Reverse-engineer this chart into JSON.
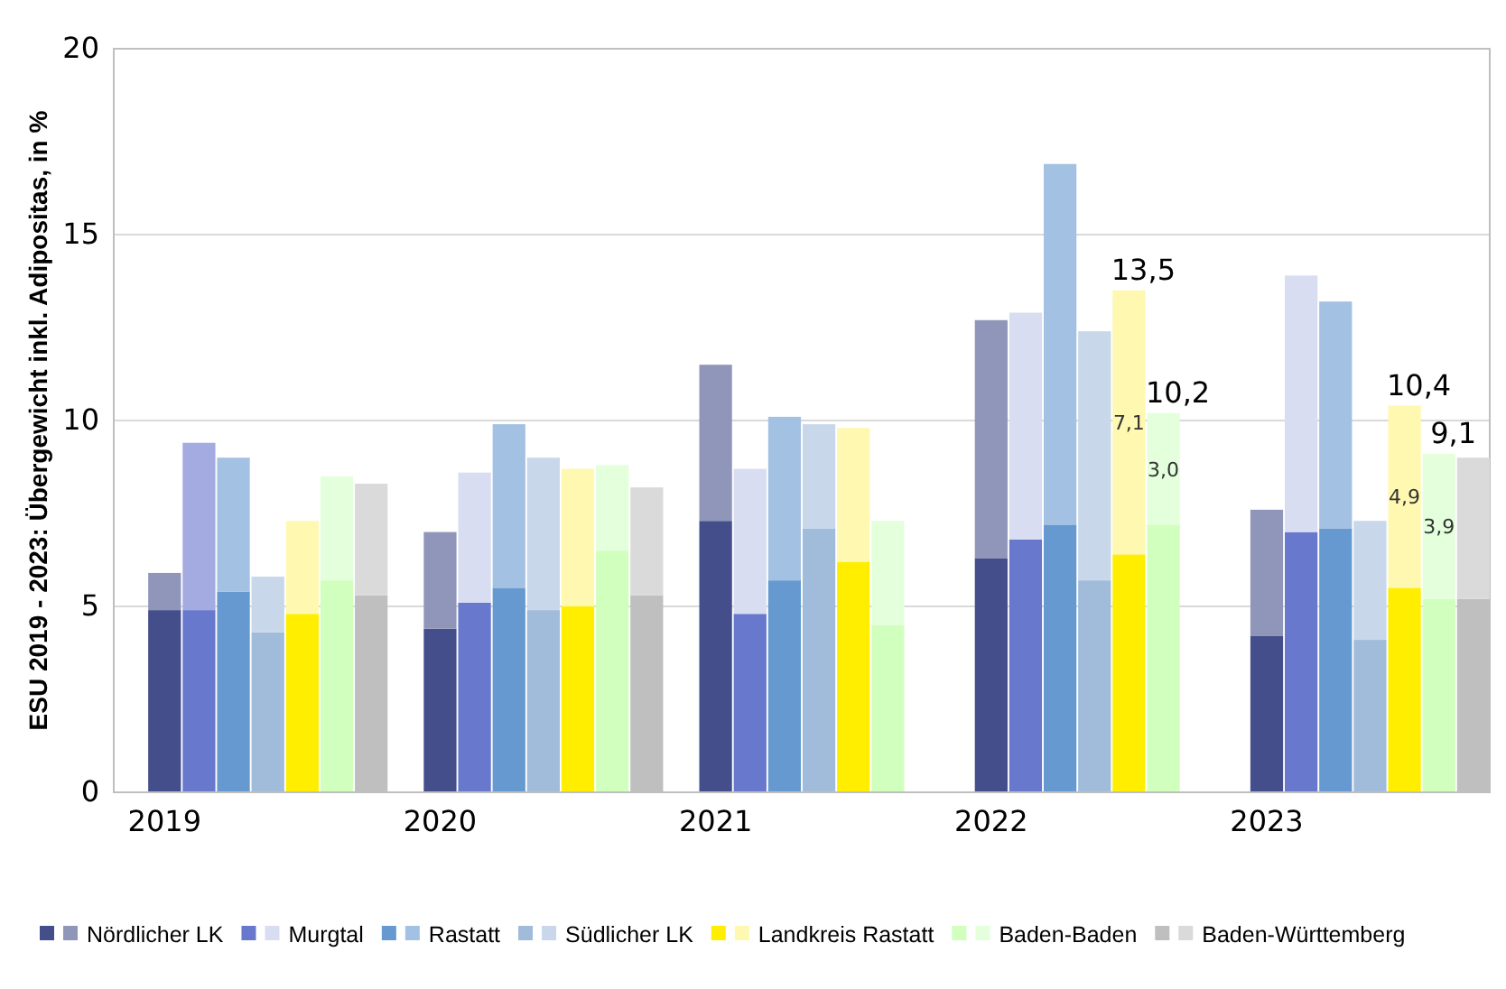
{
  "chart_data": {
    "type": "bar",
    "stacked": true,
    "ylabel": "ESU 2019 - 2023: Übergewicht inkl. Adipositas, in %",
    "ylim": [
      0,
      20
    ],
    "yticks": [
      0,
      5,
      10,
      15,
      20
    ],
    "grid": "y",
    "legend": "bottom",
    "categories": [
      null,
      "2019",
      null,
      null,
      null,
      null,
      null,
      null,
      null,
      "2020",
      null,
      null,
      null,
      null,
      null,
      null,
      null,
      "2021",
      null,
      null,
      null,
      null,
      null,
      null,
      null,
      "2022",
      null,
      null,
      null,
      null,
      null,
      null,
      null,
      "2023",
      null,
      null,
      null,
      null,
      null,
      null
    ],
    "totals": [
      null,
      null,
      null,
      null,
      null,
      null,
      null,
      null,
      null,
      null,
      null,
      null,
      null,
      null,
      null,
      null,
      null,
      null,
      null,
      null,
      null,
      null,
      null,
      null,
      null,
      null,
      null,
      null,
      null,
      "13,5",
      "10,2",
      null,
      null,
      null,
      null,
      null,
      null,
      "10,4",
      "9,1",
      null
    ],
    "series": [
      {
        "color": "#434e8a",
        "values": [
          null,
          4.9,
          null,
          null,
          null,
          null,
          null,
          null,
          null,
          4.4,
          null,
          null,
          null,
          null,
          null,
          null,
          null,
          7.3,
          null,
          null,
          null,
          null,
          null,
          null,
          null,
          6.3,
          null,
          null,
          null,
          null,
          null,
          null,
          null,
          4.2,
          null,
          null,
          null,
          null,
          null,
          null
        ]
      },
      {
        "name": "Nördlicher LK",
        "color": "#8f96b9",
        "values": [
          null,
          1.0,
          null,
          null,
          null,
          null,
          null,
          null,
          null,
          2.6,
          null,
          null,
          null,
          null,
          null,
          null,
          null,
          4.2,
          null,
          null,
          null,
          null,
          null,
          null,
          null,
          6.4,
          null,
          null,
          null,
          null,
          null,
          null,
          null,
          3.4,
          null,
          null,
          null,
          null,
          null,
          null
        ]
      },
      {
        "color": "#6878cc",
        "values": [
          null,
          null,
          4.9,
          null,
          null,
          null,
          null,
          null,
          null,
          null,
          5.1,
          null,
          null,
          null,
          null,
          null,
          null,
          null,
          4.8,
          null,
          null,
          null,
          null,
          null,
          null,
          null,
          6.8,
          null,
          null,
          null,
          null,
          null,
          null,
          null,
          7.0,
          null,
          null,
          null,
          null,
          null
        ]
      },
      {
        "name": "Murgtal",
        "color": "#d9ddf2",
        "colors": [
          null,
          null,
          "#a3abe0",
          null,
          null,
          null,
          null,
          null,
          null,
          null,
          "#d9ddf2",
          null,
          null,
          null,
          null,
          null,
          null,
          null,
          "#d9ddf2",
          null,
          null,
          null,
          null,
          null,
          null,
          null,
          "#d9ddf2",
          null,
          null,
          null,
          null,
          null,
          null,
          null,
          "#d9ddf2",
          null,
          null,
          null,
          null,
          null
        ],
        "values": [
          null,
          null,
          4.5,
          null,
          null,
          null,
          null,
          null,
          null,
          null,
          3.5,
          null,
          null,
          null,
          null,
          null,
          null,
          null,
          3.9,
          null,
          null,
          null,
          null,
          null,
          null,
          null,
          6.1,
          null,
          null,
          null,
          null,
          null,
          null,
          null,
          6.9,
          null,
          null,
          null,
          null,
          null
        ]
      },
      {
        "color": "#6699cf",
        "values": [
          null,
          null,
          null,
          5.4,
          null,
          null,
          null,
          null,
          null,
          null,
          null,
          5.5,
          null,
          null,
          null,
          null,
          null,
          null,
          null,
          5.7,
          null,
          null,
          null,
          null,
          null,
          null,
          null,
          7.2,
          null,
          null,
          null,
          null,
          null,
          null,
          null,
          7.1,
          null,
          null,
          null,
          null
        ]
      },
      {
        "name": "Rastatt",
        "color": "#a3c1e2",
        "values": [
          null,
          null,
          null,
          3.6,
          null,
          null,
          null,
          null,
          null,
          null,
          null,
          4.4,
          null,
          null,
          null,
          null,
          null,
          null,
          null,
          4.4,
          null,
          null,
          null,
          null,
          null,
          null,
          null,
          9.7,
          null,
          null,
          null,
          null,
          null,
          null,
          null,
          6.1,
          null,
          null,
          null,
          null
        ]
      },
      {
        "color": "#a0bcda",
        "values": [
          null,
          null,
          null,
          null,
          4.3,
          null,
          null,
          null,
          null,
          null,
          null,
          null,
          4.9,
          null,
          null,
          null,
          null,
          null,
          null,
          null,
          7.1,
          null,
          null,
          null,
          null,
          null,
          null,
          null,
          5.7,
          null,
          null,
          null,
          null,
          null,
          null,
          null,
          4.1,
          null,
          null,
          null
        ]
      },
      {
        "name": "Südlicher LK",
        "color": "#c8d8ea",
        "values": [
          null,
          null,
          null,
          null,
          1.5,
          null,
          null,
          null,
          null,
          null,
          null,
          null,
          4.1,
          null,
          null,
          null,
          null,
          null,
          null,
          null,
          2.8,
          null,
          null,
          null,
          null,
          null,
          null,
          null,
          6.7,
          null,
          null,
          null,
          null,
          null,
          null,
          null,
          3.2,
          null,
          null,
          null
        ]
      },
      {
        "color": "#ffee00",
        "values": [
          null,
          null,
          null,
          null,
          null,
          4.8,
          null,
          null,
          null,
          null,
          null,
          null,
          null,
          5.0,
          null,
          null,
          null,
          null,
          null,
          null,
          null,
          6.2,
          null,
          null,
          null,
          null,
          null,
          null,
          null,
          6.4,
          null,
          null,
          null,
          null,
          null,
          null,
          null,
          5.5,
          null,
          null
        ]
      },
      {
        "name": "Landkreis Rastatt",
        "color": "#fff8b0",
        "values": [
          null,
          null,
          null,
          null,
          null,
          2.5,
          null,
          null,
          null,
          null,
          null,
          null,
          null,
          3.7,
          null,
          null,
          null,
          null,
          null,
          null,
          null,
          3.6,
          null,
          null,
          null,
          null,
          null,
          null,
          null,
          7.1,
          null,
          null,
          null,
          null,
          null,
          null,
          null,
          4.9,
          null,
          null
        ],
        "value_labels": [
          null,
          null,
          null,
          null,
          null,
          null,
          null,
          null,
          null,
          null,
          null,
          null,
          null,
          null,
          null,
          null,
          null,
          null,
          null,
          null,
          null,
          null,
          null,
          null,
          null,
          null,
          null,
          null,
          null,
          "7,1",
          null,
          null,
          null,
          null,
          null,
          null,
          null,
          "4,9",
          null,
          null
        ]
      },
      {
        "color": "#d0ffbe",
        "values": [
          null,
          null,
          null,
          null,
          null,
          null,
          5.7,
          null,
          null,
          null,
          null,
          null,
          null,
          null,
          6.5,
          null,
          null,
          null,
          null,
          null,
          null,
          null,
          4.5,
          null,
          null,
          null,
          null,
          null,
          null,
          null,
          7.2,
          null,
          null,
          null,
          null,
          null,
          null,
          null,
          5.2,
          null
        ]
      },
      {
        "name": "Baden-Baden",
        "color": "#e3ffdc",
        "values": [
          null,
          null,
          null,
          null,
          null,
          null,
          2.8,
          null,
          null,
          null,
          null,
          null,
          null,
          null,
          2.3,
          null,
          null,
          null,
          null,
          null,
          null,
          null,
          2.8,
          null,
          null,
          null,
          null,
          null,
          null,
          null,
          3.0,
          null,
          null,
          null,
          null,
          null,
          null,
          null,
          3.9,
          null
        ],
        "value_labels": [
          null,
          null,
          null,
          null,
          null,
          null,
          null,
          null,
          null,
          null,
          null,
          null,
          null,
          null,
          null,
          null,
          null,
          null,
          null,
          null,
          null,
          null,
          null,
          null,
          null,
          null,
          null,
          null,
          null,
          null,
          "3,0",
          null,
          null,
          null,
          null,
          null,
          null,
          null,
          "3,9",
          null
        ]
      },
      {
        "color": "#bfbfbf",
        "values": [
          null,
          null,
          null,
          null,
          null,
          null,
          null,
          5.3,
          null,
          null,
          null,
          null,
          null,
          null,
          null,
          5.3,
          null,
          null,
          null,
          null,
          null,
          null,
          null,
          null,
          null,
          null,
          null,
          null,
          null,
          null,
          null,
          null,
          null,
          null,
          null,
          null,
          null,
          null,
          null,
          5.2
        ]
      },
      {
        "name": "Baden-Württemberg",
        "color": "#dadada",
        "values": [
          null,
          null,
          null,
          null,
          null,
          null,
          null,
          3.0,
          null,
          null,
          null,
          null,
          null,
          null,
          null,
          2.9,
          null,
          null,
          null,
          null,
          null,
          null,
          null,
          null,
          null,
          null,
          null,
          null,
          null,
          null,
          null,
          null,
          null,
          null,
          null,
          null,
          null,
          null,
          null,
          3.8
        ]
      }
    ]
  }
}
